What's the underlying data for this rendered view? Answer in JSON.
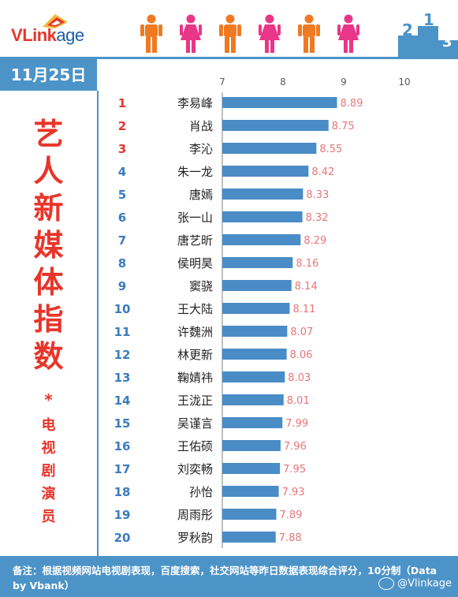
{
  "brand": {
    "logo_v": "V",
    "logo_link": "Link",
    "logo_age": "age",
    "podium_labels": [
      "2",
      "1",
      "3"
    ]
  },
  "date": "11月25日",
  "title_chars": [
    "艺",
    "人",
    "新",
    "媒",
    "体",
    "指",
    "数"
  ],
  "asterisk": "*",
  "subtitle_chars": [
    "电",
    "视",
    "剧",
    "演",
    "员"
  ],
  "colors": {
    "accent_blue": "#4c93c8",
    "bar_blue": "#4a8cc6",
    "rank_red": "#e8352a",
    "value_pink": "#e8757a",
    "rank_blue": "#3a7bbf"
  },
  "chart_data": {
    "type": "bar",
    "orientation": "horizontal",
    "xlim": [
      7,
      10
    ],
    "ticks": [
      "7",
      "8",
      "9",
      "10"
    ],
    "categories": [
      "李易峰",
      "肖战",
      "李沁",
      "朱一龙",
      "唐嫣",
      "张一山",
      "唐艺昕",
      "侯明昊",
      "窦骁",
      "王大陆",
      "许魏洲",
      "林更新",
      "鞠婧祎",
      "王泷正",
      "吴谨言",
      "王佑硕",
      "刘奕畅",
      "孙怡",
      "周雨彤",
      "罗秋韵"
    ],
    "ranks": [
      "1",
      "2",
      "3",
      "4",
      "5",
      "6",
      "7",
      "8",
      "9",
      "10",
      "11",
      "12",
      "13",
      "14",
      "15",
      "16",
      "17",
      "18",
      "19",
      "20"
    ],
    "values": [
      8.89,
      8.75,
      8.55,
      8.42,
      8.33,
      8.32,
      8.29,
      8.16,
      8.14,
      8.11,
      8.07,
      8.06,
      8.03,
      8.01,
      7.99,
      7.96,
      7.95,
      7.93,
      7.89,
      7.88
    ],
    "value_labels": [
      "8.89",
      "8.75",
      "8.55",
      "8.42",
      "8.33",
      "8.32",
      "8.29",
      "8.16",
      "8.14",
      "8.11",
      "8.07",
      "8.06",
      "8.03",
      "8.01",
      "7.99",
      "7.96",
      "7.95",
      "7.93",
      "7.89",
      "7.88"
    ],
    "grid": false
  },
  "footer": {
    "note": "备注：根据视频网站电视剧表现，百度搜索，社交网站等昨日数据表现综合评分，10分制（Data by Vbank）",
    "watermark": "@Vlinkage"
  }
}
